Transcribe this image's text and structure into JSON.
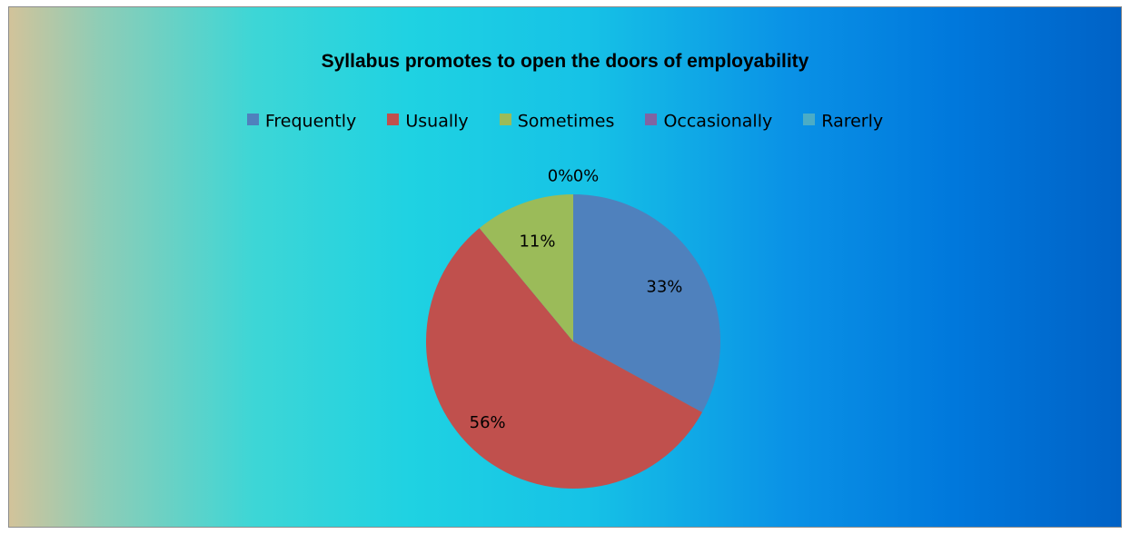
{
  "chart_data": {
    "type": "pie",
    "title": "Syllabus promotes to open the doors of employability",
    "legend_position": "top",
    "categories": [
      "Frequently",
      "Usually",
      "Sometimes",
      "Occasionally",
      "Rarerly"
    ],
    "values": [
      33,
      56,
      11,
      0,
      0
    ],
    "data_labels": [
      "33%",
      "56%",
      "11%",
      "0%",
      "0%"
    ],
    "colors": [
      "#4f81bd",
      "#c0504d",
      "#9bbb59",
      "#8064a2",
      "#4bacc6"
    ]
  }
}
